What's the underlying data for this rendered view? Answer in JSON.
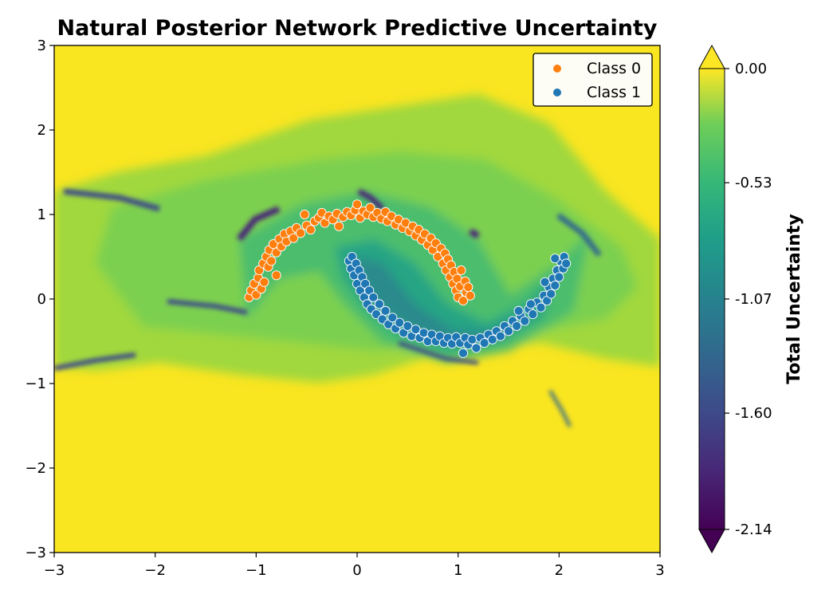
{
  "chart_data": {
    "type": "scatter",
    "title": "Natural Posterior Network Predictive Uncertainty",
    "xlabel": "",
    "ylabel": "",
    "xlim": [
      -3,
      3
    ],
    "ylim": [
      -3,
      3
    ],
    "xticks": [
      "−3",
      "−2",
      "−1",
      "0",
      "1",
      "2",
      "3"
    ],
    "yticks": [
      "−3",
      "−2",
      "−1",
      "0",
      "1",
      "2",
      "3"
    ],
    "grid": false,
    "legend_position": "top-right",
    "background": {
      "type": "contourf",
      "colormap": "viridis",
      "description_values": "total uncertainty over input space"
    },
    "colorbar": {
      "label": "Total Uncertainty",
      "min": -2.14,
      "max": 0.0,
      "ticks": [
        "0.00",
        "-0.53",
        "-1.07",
        "-1.60",
        "-2.14"
      ],
      "tick_values": [
        0.0,
        -0.53,
        -1.07,
        -1.6,
        -2.14
      ],
      "extend": "both"
    },
    "series": [
      {
        "name": "Class 0",
        "color": "#ff7f0e",
        "points": [
          [
            -1.07,
            0.02
          ],
          [
            -1.05,
            0.1
          ],
          [
            -1.02,
            0.18
          ],
          [
            -1.0,
            0.05
          ],
          [
            -0.98,
            0.25
          ],
          [
            -0.97,
            0.34
          ],
          [
            -0.95,
            0.12
          ],
          [
            -0.93,
            0.42
          ],
          [
            -0.92,
            0.2
          ],
          [
            -0.9,
            0.5
          ],
          [
            -0.88,
            0.38
          ],
          [
            -0.87,
            0.58
          ],
          [
            -0.85,
            0.45
          ],
          [
            -0.83,
            0.65
          ],
          [
            -0.8,
            0.28
          ],
          [
            -0.8,
            0.55
          ],
          [
            -0.77,
            0.71
          ],
          [
            -0.75,
            0.62
          ],
          [
            -0.72,
            0.77
          ],
          [
            -0.7,
            0.68
          ],
          [
            -0.66,
            0.8
          ],
          [
            -0.63,
            0.72
          ],
          [
            -0.6,
            0.84
          ],
          [
            -0.56,
            0.78
          ],
          [
            -0.52,
            1.0
          ],
          [
            -0.5,
            0.87
          ],
          [
            -0.46,
            0.82
          ],
          [
            -0.42,
            0.92
          ],
          [
            -0.38,
            0.96
          ],
          [
            -0.35,
            1.02
          ],
          [
            -0.32,
            0.9
          ],
          [
            -0.28,
            0.98
          ],
          [
            -0.24,
            0.94
          ],
          [
            -0.2,
            1.01
          ],
          [
            -0.18,
            0.86
          ],
          [
            -0.14,
            0.97
          ],
          [
            -0.1,
            1.03
          ],
          [
            -0.06,
            0.99
          ],
          [
            -0.02,
            1.05
          ],
          [
            0.0,
            1.12
          ],
          [
            0.03,
            0.96
          ],
          [
            0.06,
            1.04
          ],
          [
            0.1,
            1.0
          ],
          [
            0.13,
            1.08
          ],
          [
            0.16,
            0.97
          ],
          [
            0.2,
            1.02
          ],
          [
            0.24,
            0.95
          ],
          [
            0.28,
            1.03
          ],
          [
            0.3,
            0.92
          ],
          [
            0.34,
            0.98
          ],
          [
            0.38,
            0.88
          ],
          [
            0.41,
            0.94
          ],
          [
            0.45,
            0.84
          ],
          [
            0.48,
            0.9
          ],
          [
            0.52,
            0.8
          ],
          [
            0.55,
            0.86
          ],
          [
            0.58,
            0.75
          ],
          [
            0.61,
            0.82
          ],
          [
            0.64,
            0.7
          ],
          [
            0.67,
            0.77
          ],
          [
            0.7,
            0.64
          ],
          [
            0.73,
            0.72
          ],
          [
            0.75,
            0.58
          ],
          [
            0.78,
            0.66
          ],
          [
            0.8,
            0.5
          ],
          [
            0.83,
            0.6
          ],
          [
            0.85,
            0.42
          ],
          [
            0.87,
            0.54
          ],
          [
            0.88,
            0.34
          ],
          [
            0.9,
            0.47
          ],
          [
            0.92,
            0.26
          ],
          [
            0.93,
            0.4
          ],
          [
            0.95,
            0.18
          ],
          [
            0.96,
            0.32
          ],
          [
            0.98,
            0.1
          ],
          [
            0.99,
            0.24
          ],
          [
            1.0,
            0.02
          ],
          [
            1.02,
            0.15
          ],
          [
            1.03,
            0.34
          ],
          [
            1.05,
            -0.02
          ],
          [
            1.07,
            0.21
          ],
          [
            1.08,
            0.08
          ],
          [
            1.1,
            0.14
          ],
          [
            1.12,
            0.04
          ]
        ]
      },
      {
        "name": "Class 1",
        "color": "#1f77b4",
        "points": [
          [
            -0.08,
            0.45
          ],
          [
            -0.06,
            0.36
          ],
          [
            -0.05,
            0.5
          ],
          [
            -0.03,
            0.28
          ],
          [
            -0.01,
            0.42
          ],
          [
            0.0,
            0.18
          ],
          [
            0.02,
            0.34
          ],
          [
            0.03,
            0.1
          ],
          [
            0.05,
            0.26
          ],
          [
            0.07,
            0.02
          ],
          [
            0.08,
            0.18
          ],
          [
            0.1,
            -0.06
          ],
          [
            0.12,
            0.1
          ],
          [
            0.14,
            -0.12
          ],
          [
            0.16,
            0.02
          ],
          [
            0.19,
            -0.18
          ],
          [
            0.22,
            -0.06
          ],
          [
            0.25,
            -0.24
          ],
          [
            0.28,
            -0.14
          ],
          [
            0.31,
            -0.3
          ],
          [
            0.35,
            -0.22
          ],
          [
            0.38,
            -0.35
          ],
          [
            0.42,
            -0.28
          ],
          [
            0.46,
            -0.4
          ],
          [
            0.5,
            -0.32
          ],
          [
            0.54,
            -0.44
          ],
          [
            0.58,
            -0.36
          ],
          [
            0.62,
            -0.46
          ],
          [
            0.66,
            -0.4
          ],
          [
            0.7,
            -0.5
          ],
          [
            0.74,
            -0.42
          ],
          [
            0.78,
            -0.5
          ],
          [
            0.82,
            -0.44
          ],
          [
            0.86,
            -0.52
          ],
          [
            0.9,
            -0.46
          ],
          [
            0.94,
            -0.53
          ],
          [
            0.98,
            -0.45
          ],
          [
            1.02,
            -0.52
          ],
          [
            1.05,
            -0.64
          ],
          [
            1.07,
            -0.46
          ],
          [
            1.1,
            -0.54
          ],
          [
            1.14,
            -0.48
          ],
          [
            1.18,
            -0.58
          ],
          [
            1.22,
            -0.46
          ],
          [
            1.26,
            -0.52
          ],
          [
            1.3,
            -0.42
          ],
          [
            1.34,
            -0.48
          ],
          [
            1.38,
            -0.38
          ],
          [
            1.42,
            -0.44
          ],
          [
            1.46,
            -0.32
          ],
          [
            1.5,
            -0.38
          ],
          [
            1.54,
            -0.26
          ],
          [
            1.58,
            -0.32
          ],
          [
            1.62,
            -0.2
          ],
          [
            1.66,
            -0.26
          ],
          [
            1.7,
            -0.12
          ],
          [
            1.74,
            -0.18
          ],
          [
            1.78,
            -0.04
          ],
          [
            1.82,
            -0.1
          ],
          [
            1.85,
            0.04
          ],
          [
            1.88,
            -0.02
          ],
          [
            1.9,
            0.14
          ],
          [
            1.92,
            0.06
          ],
          [
            1.94,
            0.24
          ],
          [
            1.96,
            0.16
          ],
          [
            1.98,
            0.34
          ],
          [
            2.0,
            0.26
          ],
          [
            2.02,
            0.44
          ],
          [
            2.04,
            0.36
          ],
          [
            2.05,
            0.5
          ],
          [
            2.07,
            0.42
          ],
          [
            1.96,
            0.48
          ],
          [
            1.86,
            0.2
          ],
          [
            1.72,
            -0.06
          ],
          [
            1.6,
            -0.14
          ]
        ]
      }
    ]
  }
}
